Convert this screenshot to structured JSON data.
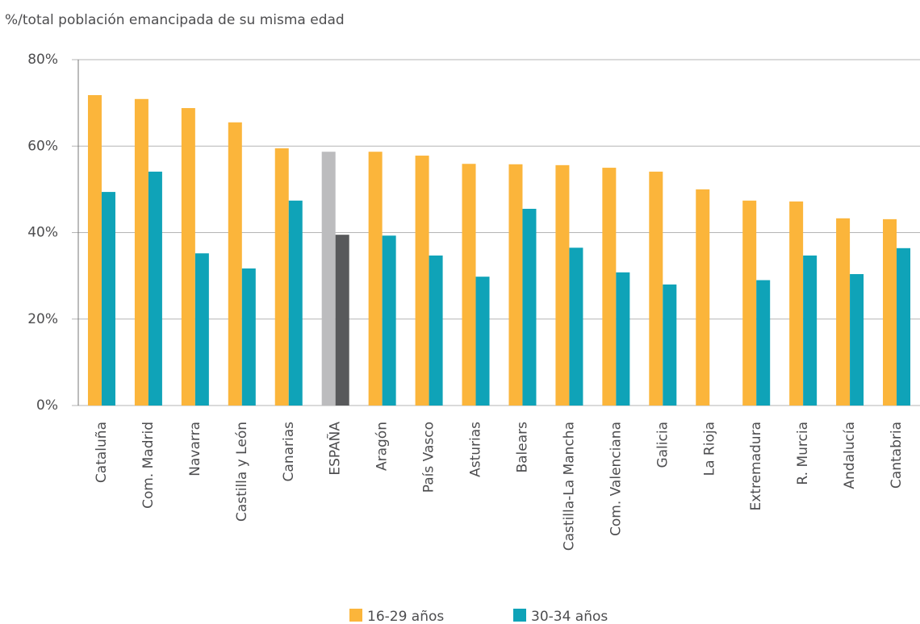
{
  "chart_data": {
    "type": "bar",
    "y_axis_label": "%/total población emancipada de su misma edad",
    "categories": [
      "Cataluña",
      "Com. Madrid",
      "Navarra",
      "Castilla y León",
      "Canarias",
      "ESPAÑA",
      "Aragón",
      "País Vasco",
      "Asturias",
      "Balears",
      "Castilla-La Mancha",
      "Com. Valenciana",
      "Galicia",
      "La Rioja",
      "Extremadura",
      "R. Murcia",
      "Andalucía",
      "Cantabria"
    ],
    "series": [
      {
        "name": "16-29 años",
        "color": "#fbb53b",
        "highlight_color": "#bcbcbe",
        "values": [
          71.8,
          70.9,
          68.8,
          65.5,
          59.5,
          58.7,
          58.7,
          57.8,
          55.9,
          55.8,
          55.6,
          55.0,
          54.1,
          50.0,
          47.4,
          47.2,
          43.3,
          43.1
        ]
      },
      {
        "name": "30-34 años",
        "color": "#0fa3b8",
        "highlight_color": "#58595b",
        "values": [
          49.4,
          54.1,
          35.2,
          31.7,
          47.4,
          39.5,
          39.3,
          34.7,
          29.8,
          45.5,
          36.5,
          30.8,
          28.0,
          null,
          29.0,
          34.7,
          30.4,
          36.4
        ]
      }
    ],
    "highlight_categories": [
      5
    ],
    "ylim": [
      0,
      80
    ],
    "yticks": [
      {
        "value": 0,
        "label": "0%"
      },
      {
        "value": 20,
        "label": "20%"
      },
      {
        "value": 40,
        "label": "40%"
      },
      {
        "value": 60,
        "label": "60%"
      },
      {
        "value": 80,
        "label": "80%"
      }
    ],
    "grid": true,
    "legend": "bottom"
  }
}
